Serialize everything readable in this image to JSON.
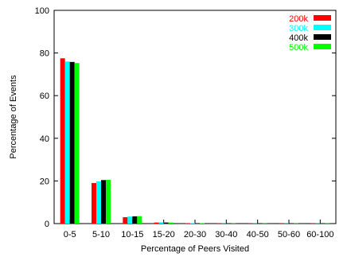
{
  "chart_data": {
    "type": "bar",
    "title": "",
    "xlabel": "Percentage of Peers Visited",
    "ylabel": "Percentage of Events",
    "ylim": [
      0,
      100
    ],
    "yticks": [
      0,
      20,
      40,
      60,
      80,
      100
    ],
    "grid": false,
    "legend_position": "top-right",
    "categories": [
      "0-5",
      "5-10",
      "10-15",
      "15-20",
      "20-30",
      "30-40",
      "40-50",
      "50-60",
      "60-100"
    ],
    "series": [
      {
        "name": "200k",
        "color": "#ff0000",
        "values": [
          77.5,
          19.0,
          3.0,
          0.5,
          0.2,
          0.1,
          0.1,
          0.1,
          0.1
        ]
      },
      {
        "name": "300k",
        "color": "#00ffff",
        "values": [
          76.0,
          19.8,
          3.3,
          0.6,
          0.2,
          0.1,
          0.1,
          0.1,
          0.1
        ]
      },
      {
        "name": "400k",
        "color": "#000000",
        "values": [
          75.8,
          20.4,
          3.4,
          0.5,
          0.2,
          0.1,
          0.1,
          0.1,
          0.1
        ]
      },
      {
        "name": "500k",
        "color": "#00ff00",
        "values": [
          75.3,
          20.5,
          3.5,
          0.5,
          0.2,
          0.1,
          0.1,
          0.1,
          0.1
        ]
      }
    ]
  }
}
